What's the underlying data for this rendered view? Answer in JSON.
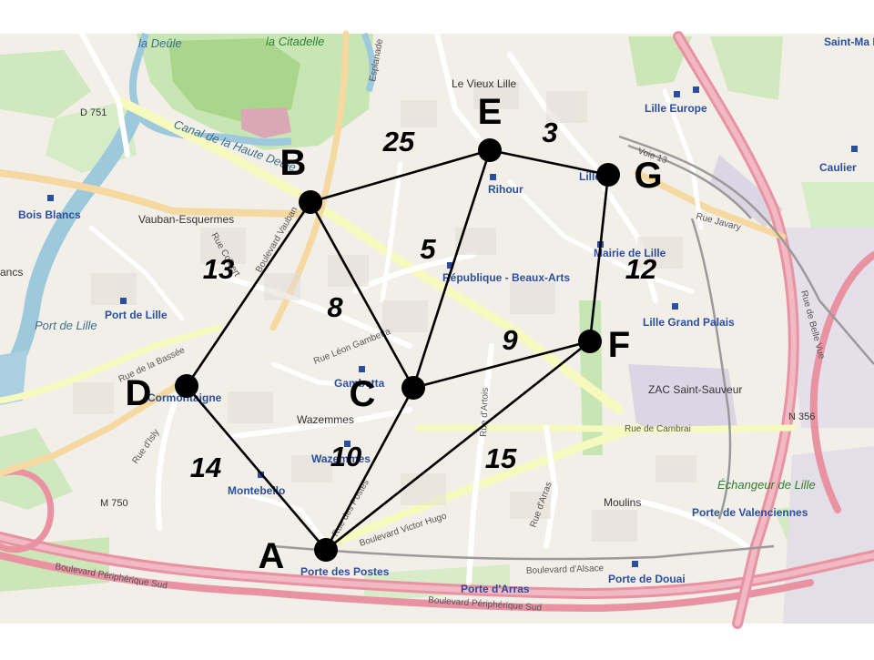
{
  "map": {
    "places": [
      {
        "id": "la-citadelle",
        "text": "la Citadelle",
        "cls": "park-label"
      },
      {
        "id": "la-deule",
        "text": "la Deûle",
        "cls": "water-label"
      },
      {
        "id": "canal",
        "text": "Canal de la Haute Deûle",
        "cls": "water-label"
      },
      {
        "id": "le-vieux-lille",
        "text": "Le Vieux Lille",
        "cls": "place-label"
      },
      {
        "id": "d751",
        "text": "D 751",
        "cls": "road-shield"
      },
      {
        "id": "bois-blancs",
        "text": "Bois Blancs",
        "cls": "station-label"
      },
      {
        "id": "vauban",
        "text": "Vauban-Esquermes",
        "cls": "place-label"
      },
      {
        "id": "lancs",
        "text": "ancs",
        "cls": "place-label"
      },
      {
        "id": "port-de-lille",
        "text": "Port de Lille",
        "cls": "water-label"
      },
      {
        "id": "port-de-lille-station",
        "text": "Port de Lille",
        "cls": "station-label"
      },
      {
        "id": "rihour",
        "text": "Rihour",
        "cls": "station-label"
      },
      {
        "id": "lille-flandres",
        "text": "Lille Fl",
        "cls": "station-label"
      },
      {
        "id": "lille-europe",
        "text": "Lille Europe",
        "cls": "station-label"
      },
      {
        "id": "saint-maurice",
        "text": "Saint-Ma Pellevo",
        "cls": "station-label"
      },
      {
        "id": "caulier",
        "text": "Caulier",
        "cls": "station-label"
      },
      {
        "id": "republique",
        "text": "République - Beaux-Arts",
        "cls": "station-label"
      },
      {
        "id": "mairie",
        "text": "Mairie de Lille",
        "cls": "station-label"
      },
      {
        "id": "lille-grand-palais",
        "text": "Lille Grand Palais",
        "cls": "station-label"
      },
      {
        "id": "gambetta",
        "text": "Gambetta",
        "cls": "station-label"
      },
      {
        "id": "wazemmes",
        "text": "Wazemmes",
        "cls": "place-label"
      },
      {
        "id": "wazemmes-station",
        "text": "Wazemmes",
        "cls": "station-label"
      },
      {
        "id": "cormontaigne",
        "text": "Cormontaigne",
        "cls": "station-label"
      },
      {
        "id": "montebello",
        "text": "Montebello",
        "cls": "station-label"
      },
      {
        "id": "zac",
        "text": "ZAC Saint-Sauveur",
        "cls": "place-label"
      },
      {
        "id": "moulins",
        "text": "Moulins",
        "cls": "place-label"
      },
      {
        "id": "m750",
        "text": "M 750",
        "cls": "road-shield"
      },
      {
        "id": "n356",
        "text": "N 356",
        "cls": "road-shield"
      },
      {
        "id": "porte-des-postes",
        "text": "Porte des Postes",
        "cls": "station-label"
      },
      {
        "id": "porte-d-arras",
        "text": "Porte d'Arras",
        "cls": "station-label"
      },
      {
        "id": "porte-de-douai",
        "text": "Porte de Douai",
        "cls": "station-label"
      },
      {
        "id": "porte-de-valenciennes",
        "text": "Porte de Valenciennes",
        "cls": "station-label"
      },
      {
        "id": "echangeur",
        "text": "Échangeur de Lille",
        "cls": "park-label"
      },
      {
        "id": "rue-leon-gambetta",
        "text": "Rue Léon Gambetta",
        "cls": "street-label"
      },
      {
        "id": "rue-de-cambrai",
        "text": "Rue de Cambrai",
        "cls": "street-label"
      },
      {
        "id": "boulevard-victor-hugo",
        "text": "Boulevard Victor Hugo",
        "cls": "street-label"
      },
      {
        "id": "boulevard-d-alsace",
        "text": "Boulevard d'Alsace",
        "cls": "street-label"
      },
      {
        "id": "periph-sud",
        "text": "Boulevard Périphérique Sud",
        "cls": "street-label"
      },
      {
        "id": "periph-sud-2",
        "text": "Boulevard Périphérique Sud",
        "cls": "street-label"
      },
      {
        "id": "rue-d-arras",
        "text": "Rue d'Arras",
        "cls": "street-label"
      },
      {
        "id": "rue-d-artois",
        "text": "Rue d'Artois",
        "cls": "street-label"
      },
      {
        "id": "rue-javary",
        "text": "Rue Javary",
        "cls": "street-label"
      },
      {
        "id": "rue-de-la-bassee",
        "text": "Rue de la Bassée",
        "cls": "street-label"
      },
      {
        "id": "rue-d-isly",
        "text": "Rue d'Isly",
        "cls": "street-label"
      },
      {
        "id": "boulevard-vauban",
        "text": "Boulevard Vauban",
        "cls": "street-label"
      },
      {
        "id": "rue-des-postes",
        "text": "Rue des Postes",
        "cls": "street-label"
      },
      {
        "id": "rue-colbert",
        "text": "Rue Colbert",
        "cls": "street-label"
      },
      {
        "id": "esplanade",
        "text": "Esplanade",
        "cls": "street-label"
      },
      {
        "id": "rue-de-belle-vue",
        "text": "Rue de Belle Vue",
        "cls": "street-label"
      },
      {
        "id": "voie-13",
        "text": "Voie 13",
        "cls": "street-label"
      }
    ]
  },
  "graph": {
    "nodes": [
      {
        "id": "A",
        "label": "A"
      },
      {
        "id": "B",
        "label": "B"
      },
      {
        "id": "C",
        "label": "C"
      },
      {
        "id": "D",
        "label": "D"
      },
      {
        "id": "E",
        "label": "E"
      },
      {
        "id": "F",
        "label": "F"
      },
      {
        "id": "G",
        "label": "G"
      }
    ],
    "edges": [
      {
        "from": "B",
        "to": "E",
        "weight": "25"
      },
      {
        "from": "E",
        "to": "G",
        "weight": "3"
      },
      {
        "from": "B",
        "to": "D",
        "weight": "13"
      },
      {
        "from": "B",
        "to": "C",
        "weight": "8"
      },
      {
        "from": "E",
        "to": "C",
        "weight": "5"
      },
      {
        "from": "G",
        "to": "F",
        "weight": "12"
      },
      {
        "from": "C",
        "to": "F",
        "weight": "9"
      },
      {
        "from": "D",
        "to": "A",
        "weight": "14"
      },
      {
        "from": "C",
        "to": "A",
        "weight": "10"
      },
      {
        "from": "A",
        "to": "F",
        "weight": "15"
      },
      {
        "from": "A",
        "to": "G",
        "weight": ""
      }
    ]
  }
}
